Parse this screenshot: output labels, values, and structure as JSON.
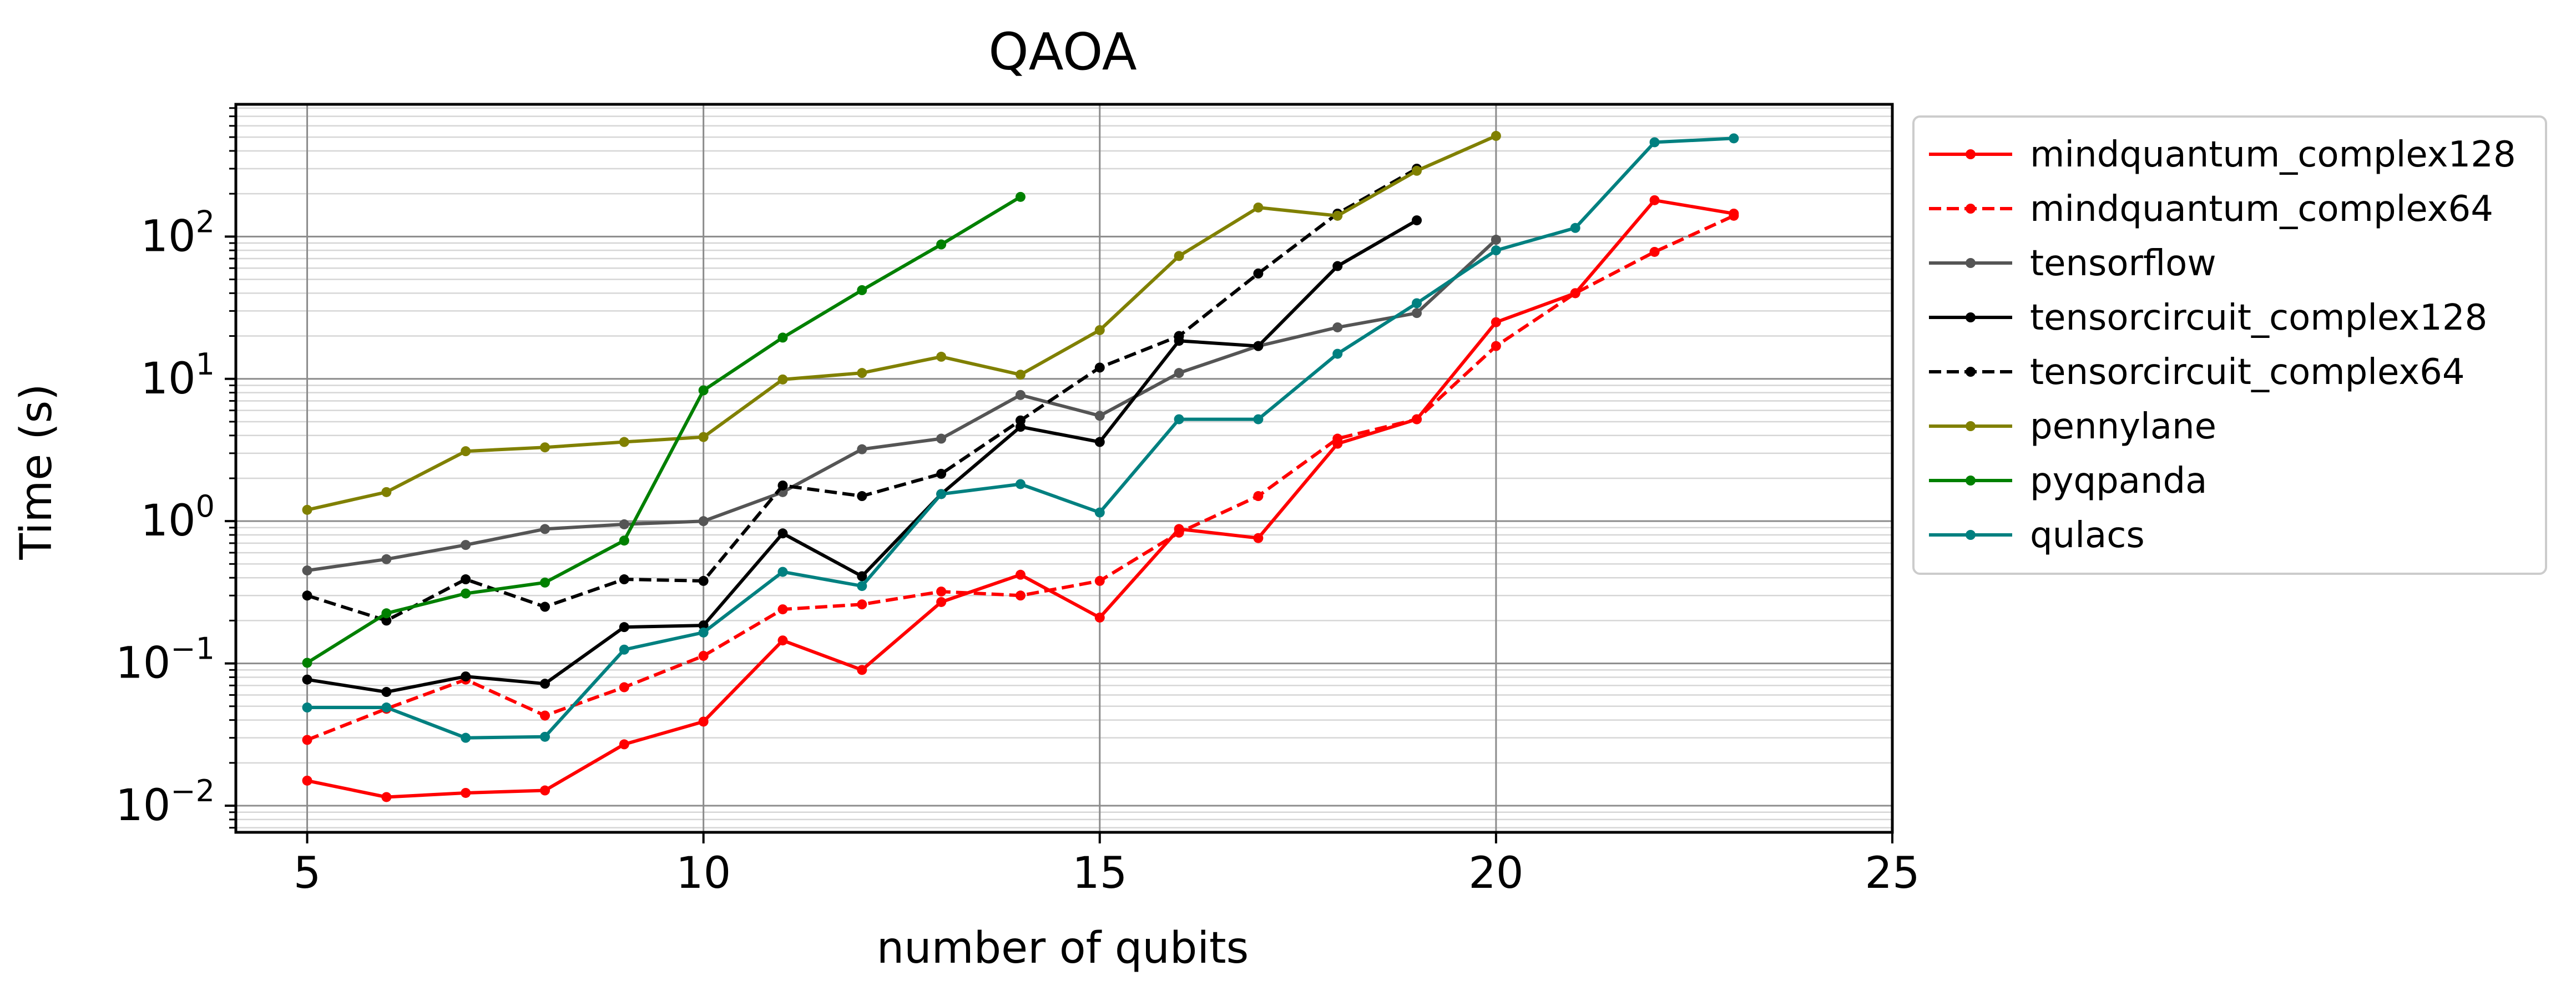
{
  "chart_data": {
    "type": "line",
    "title": "QAOA",
    "xlabel": "number of qubits",
    "ylabel": "Time (s)",
    "xlim": [
      4.1,
      25
    ],
    "ylim": [
      0.0065,
      850
    ],
    "yscale": "log",
    "grid": true,
    "legend_position": "outside-right-top",
    "x_ticks": [
      5,
      10,
      15,
      20,
      25
    ],
    "y_ticks": [
      {
        "value": 0.01,
        "base": "10",
        "exp": "−2"
      },
      {
        "value": 0.1,
        "base": "10",
        "exp": "−1"
      },
      {
        "value": 1,
        "base": "10",
        "exp": "0"
      },
      {
        "value": 10,
        "base": "10",
        "exp": "1"
      },
      {
        "value": 100,
        "base": "10",
        "exp": "2"
      }
    ],
    "series": [
      {
        "name": "mindquantum_complex128",
        "color": "#ff0000",
        "dash": "solid",
        "x": [
          5,
          6,
          7,
          8,
          9,
          10,
          11,
          12,
          13,
          14,
          15,
          16,
          17,
          18,
          19,
          20,
          21,
          22,
          23
        ],
        "y": [
          0.015,
          0.0115,
          0.0123,
          0.0128,
          0.027,
          0.039,
          0.145,
          0.09,
          0.27,
          0.42,
          0.21,
          0.88,
          0.76,
          3.5,
          5.2,
          25,
          40,
          180,
          145
        ]
      },
      {
        "name": "mindquantum_complex64",
        "color": "#ff0000",
        "dash": "dashed",
        "x": [
          5,
          6,
          7,
          8,
          9,
          10,
          11,
          12,
          13,
          14,
          15,
          16,
          17,
          18,
          19,
          20,
          21,
          22,
          23
        ],
        "y": [
          0.029,
          0.048,
          0.077,
          0.043,
          0.068,
          0.113,
          0.24,
          0.26,
          0.32,
          0.3,
          0.38,
          0.83,
          1.5,
          3.8,
          5.2,
          17,
          40,
          78,
          140
        ]
      },
      {
        "name": "tensorflow",
        "color": "#555555",
        "dash": "solid",
        "x": [
          5,
          6,
          7,
          8,
          9,
          10,
          11,
          12,
          13,
          14,
          15,
          16,
          17,
          18,
          19,
          20
        ],
        "y": [
          0.45,
          0.54,
          0.68,
          0.88,
          0.95,
          1.0,
          1.6,
          3.2,
          3.8,
          7.7,
          5.5,
          11,
          17,
          23,
          29,
          95
        ]
      },
      {
        "name": "tensorcircuit_complex128",
        "color": "#000000",
        "dash": "solid",
        "x": [
          5,
          6,
          7,
          8,
          9,
          10,
          11,
          12,
          13,
          14,
          15,
          16,
          17,
          18,
          19
        ],
        "y": [
          0.077,
          0.063,
          0.081,
          0.072,
          0.18,
          0.185,
          0.82,
          0.41,
          1.55,
          4.6,
          3.6,
          18.5,
          17,
          62,
          130
        ]
      },
      {
        "name": "tensorcircuit_complex64",
        "color": "#000000",
        "dash": "dashed",
        "x": [
          5,
          6,
          7,
          8,
          9,
          10,
          11,
          12,
          13,
          14,
          15,
          16,
          17,
          18,
          19
        ],
        "y": [
          0.3,
          0.2,
          0.39,
          0.25,
          0.39,
          0.38,
          1.78,
          1.5,
          2.15,
          5.1,
          12,
          20,
          55,
          145,
          300
        ]
      },
      {
        "name": "pennylane",
        "color": "#808000",
        "dash": "solid",
        "x": [
          5,
          6,
          7,
          8,
          9,
          10,
          11,
          12,
          13,
          14,
          15,
          16,
          17,
          18,
          19,
          20
        ],
        "y": [
          1.2,
          1.6,
          3.1,
          3.3,
          3.6,
          3.9,
          9.9,
          11,
          14.3,
          10.7,
          22,
          73,
          160,
          140,
          290,
          510
        ]
      },
      {
        "name": "pyqpanda",
        "color": "#008000",
        "dash": "solid",
        "x": [
          5,
          6,
          7,
          8,
          9,
          10,
          11,
          12,
          13,
          14
        ],
        "y": [
          0.101,
          0.225,
          0.31,
          0.37,
          0.73,
          8.3,
          19.5,
          42,
          88,
          190
        ]
      },
      {
        "name": "qulacs",
        "color": "#008080",
        "dash": "solid",
        "x": [
          5,
          6,
          7,
          8,
          9,
          10,
          11,
          12,
          13,
          14,
          15,
          16,
          17,
          18,
          19,
          20,
          21,
          22,
          23
        ],
        "y": [
          0.049,
          0.049,
          0.03,
          0.0305,
          0.125,
          0.165,
          0.44,
          0.35,
          1.55,
          1.82,
          1.15,
          5.2,
          5.2,
          15,
          34,
          80,
          115,
          460,
          490
        ]
      }
    ]
  }
}
